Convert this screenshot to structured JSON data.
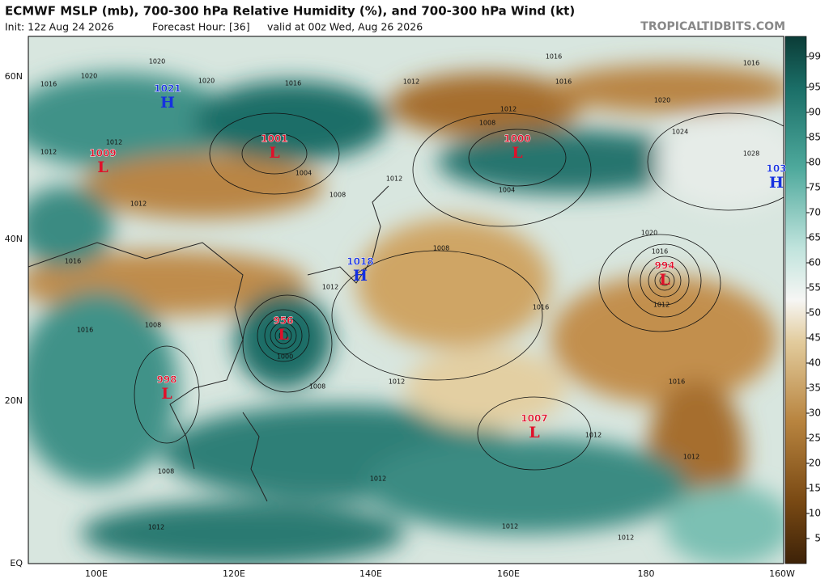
{
  "header": {
    "title": "ECMWF MSLP (mb), 700-300 hPa Relative Humidity (%), and 700-300 hPa Wind (kt)",
    "init": "Init: 12z Aug 24 2026",
    "forecast_hour": "Forecast Hour: [36]",
    "valid": "valid at 00z Wed, Aug 26 2026",
    "watermark": "TROPICALTIDBITS.COM"
  },
  "map": {
    "lon_labels": [
      "100E",
      "120E",
      "140E",
      "160E",
      "180",
      "160W"
    ],
    "lat_labels": [
      "60N",
      "40N",
      "20N",
      "EQ"
    ],
    "centers": [
      {
        "type": "H",
        "value": 1021
      },
      {
        "type": "L",
        "value": 1009
      },
      {
        "type": "L",
        "value": 1001
      },
      {
        "type": "L",
        "value": 1000
      },
      {
        "type": "H",
        "value": 103
      },
      {
        "type": "H",
        "value": 1018
      },
      {
        "type": "L",
        "value": 994
      },
      {
        "type": "L",
        "value": 956
      },
      {
        "type": "L",
        "value": 998
      },
      {
        "type": "L",
        "value": 1007
      }
    ],
    "isobar_labels": [
      1020,
      1020,
      1020,
      1016,
      1016,
      1016,
      1016,
      1016,
      1012,
      1012,
      1020,
      1012,
      1012,
      1024,
      1028,
      1008,
      1004,
      1004,
      1012,
      1008,
      1012,
      1008,
      1020,
      1016,
      1016,
      1012,
      1016,
      1012,
      1008,
      1016,
      1000,
      1008,
      1012,
      1016,
      1012,
      1012,
      1008,
      1012,
      1012,
      1012,
      1012
    ]
  },
  "colorbar": {
    "ticks": [
      99,
      95,
      90,
      85,
      80,
      75,
      70,
      65,
      60,
      55,
      50,
      45,
      40,
      35,
      30,
      25,
      20,
      15,
      10,
      5
    ]
  }
}
